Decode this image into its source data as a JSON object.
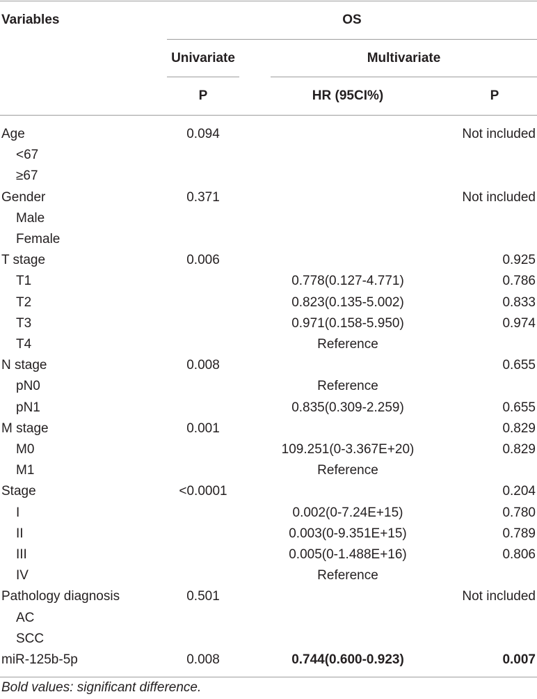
{
  "header": {
    "variables": "Variables",
    "os": "OS",
    "univariate": "Univariate",
    "multivariate": "Multivariate",
    "p_uni": "P",
    "hr": "HR (95CI%)",
    "p_multi": "P"
  },
  "rows": [
    {
      "label": "Age",
      "indent": false,
      "uni_p": "0.094",
      "hr": "",
      "multi_p": "Not included",
      "bold": false
    },
    {
      "label": "<67",
      "indent": true,
      "uni_p": "",
      "hr": "",
      "multi_p": "",
      "bold": false
    },
    {
      "label": "≥67",
      "indent": true,
      "uni_p": "",
      "hr": "",
      "multi_p": "",
      "bold": false
    },
    {
      "label": "Gender",
      "indent": false,
      "uni_p": "0.371",
      "hr": "",
      "multi_p": "Not included",
      "bold": false
    },
    {
      "label": "Male",
      "indent": true,
      "uni_p": "",
      "hr": "",
      "multi_p": "",
      "bold": false
    },
    {
      "label": "Female",
      "indent": true,
      "uni_p": "",
      "hr": "",
      "multi_p": "",
      "bold": false
    },
    {
      "label": "T stage",
      "indent": false,
      "uni_p": "0.006",
      "hr": "",
      "multi_p": "0.925",
      "bold": false
    },
    {
      "label": "T1",
      "indent": true,
      "uni_p": "",
      "hr": "0.778(0.127-4.771)",
      "multi_p": "0.786",
      "bold": false
    },
    {
      "label": "T2",
      "indent": true,
      "uni_p": "",
      "hr": "0.823(0.135-5.002)",
      "multi_p": "0.833",
      "bold": false
    },
    {
      "label": "T3",
      "indent": true,
      "uni_p": "",
      "hr": "0.971(0.158-5.950)",
      "multi_p": "0.974",
      "bold": false
    },
    {
      "label": "T4",
      "indent": true,
      "uni_p": "",
      "hr": "Reference",
      "multi_p": "",
      "bold": false
    },
    {
      "label": "N stage",
      "indent": false,
      "uni_p": "0.008",
      "hr": "",
      "multi_p": "0.655",
      "bold": false
    },
    {
      "label": "pN0",
      "indent": true,
      "uni_p": "",
      "hr": "Reference",
      "multi_p": "",
      "bold": false
    },
    {
      "label": "pN1",
      "indent": true,
      "uni_p": "",
      "hr": "0.835(0.309-2.259)",
      "multi_p": "0.655",
      "bold": false
    },
    {
      "label": "M stage",
      "indent": false,
      "uni_p": "0.001",
      "hr": "",
      "multi_p": "0.829",
      "bold": false
    },
    {
      "label": "M0",
      "indent": true,
      "uni_p": "",
      "hr": "109.251(0-3.367E+20)",
      "multi_p": "0.829",
      "bold": false
    },
    {
      "label": "M1",
      "indent": true,
      "uni_p": "",
      "hr": "Reference",
      "multi_p": "",
      "bold": false
    },
    {
      "label": "Stage",
      "indent": false,
      "uni_p": "<0.0001",
      "hr": "",
      "multi_p": "0.204",
      "bold": false
    },
    {
      "label": "I",
      "indent": true,
      "uni_p": "",
      "hr": "0.002(0-7.24E+15)",
      "multi_p": "0.780",
      "bold": false
    },
    {
      "label": "II",
      "indent": true,
      "uni_p": "",
      "hr": "0.003(0-9.351E+15)",
      "multi_p": "0.789",
      "bold": false
    },
    {
      "label": "III",
      "indent": true,
      "uni_p": "",
      "hr": "0.005(0-1.488E+16)",
      "multi_p": "0.806",
      "bold": false
    },
    {
      "label": "IV",
      "indent": true,
      "uni_p": "",
      "hr": "Reference",
      "multi_p": "",
      "bold": false
    },
    {
      "label": "Pathology diagnosis",
      "indent": false,
      "uni_p": "0.501",
      "hr": "",
      "multi_p": "Not included",
      "bold": false
    },
    {
      "label": "AC",
      "indent": true,
      "uni_p": "",
      "hr": "",
      "multi_p": "",
      "bold": false
    },
    {
      "label": "SCC",
      "indent": true,
      "uni_p": "",
      "hr": "",
      "multi_p": "",
      "bold": false
    },
    {
      "label": "miR-125b-5p",
      "indent": false,
      "uni_p": "0.008",
      "hr": "0.744(0.600-0.923)",
      "multi_p": "0.007",
      "bold": true
    }
  ],
  "footnote": "Bold values: significant difference."
}
